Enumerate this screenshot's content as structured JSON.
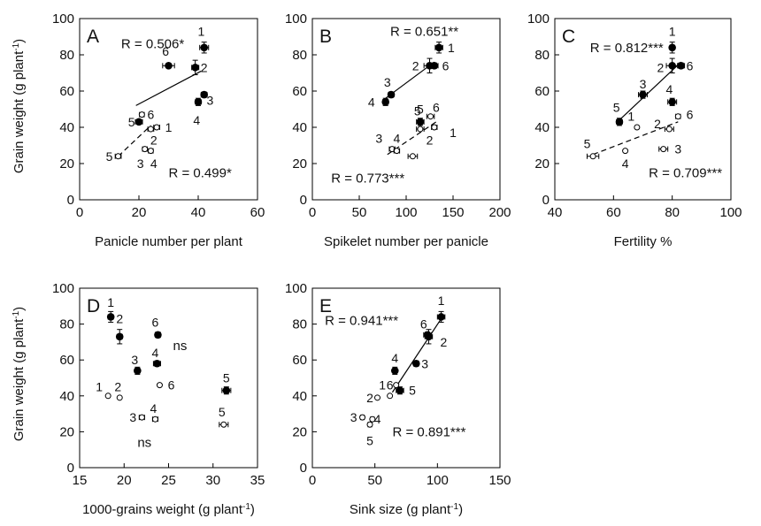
{
  "y_label_text": "Grain weight (g plant",
  "y_label_sup": "-1",
  "y_label_end": ")",
  "chart_data": [
    {
      "type": "scatter",
      "panel_label": "A",
      "xlabel": "Panicle number per plant",
      "xlim": [
        0,
        60
      ],
      "ylim": [
        0,
        100
      ],
      "xticks": [
        0,
        20,
        40,
        60
      ],
      "yticks": [
        0,
        20,
        40,
        60,
        80,
        100
      ],
      "annotations": [
        {
          "text": "R = 0.506*",
          "x": 14,
          "y": 86
        },
        {
          "text": "R = 0.499*",
          "x": 30,
          "y": 15
        }
      ],
      "series": [
        {
          "marker": "filled",
          "points": [
            {
              "label": "1",
              "x": 42,
              "y": 84,
              "xerr": 1.5,
              "yerr": 3,
              "lx": 41,
              "ly": 93
            },
            {
              "label": "2",
              "x": 39,
              "y": 73,
              "xerr": 1.2,
              "yerr": 4,
              "lx": 42,
              "ly": 73
            },
            {
              "label": "3",
              "x": 42,
              "y": 58,
              "xerr": 1,
              "yerr": 1.5,
              "lx": 44,
              "ly": 55
            },
            {
              "label": "4",
              "x": 40,
              "y": 54,
              "xerr": 1,
              "yerr": 2,
              "lx": 39.5,
              "ly": 44
            },
            {
              "label": "5",
              "x": 20,
              "y": 43,
              "xerr": 1.2,
              "yerr": 1,
              "lx": 17.5,
              "ly": 43
            },
            {
              "label": "6",
              "x": 30,
              "y": 74,
              "xerr": 2,
              "yerr": 1,
              "lx": 29,
              "ly": 82
            }
          ],
          "fit": {
            "x": [
              19,
              41
            ],
            "y": [
              52,
              71
            ],
            "dash": false
          }
        },
        {
          "marker": "open",
          "points": [
            {
              "label": "1",
              "x": 26,
              "y": 40,
              "xerr": 1,
              "yerr": 0,
              "lx": 30,
              "ly": 40
            },
            {
              "label": "2",
              "x": 24,
              "y": 39,
              "xerr": 1,
              "yerr": 0,
              "lx": 25,
              "ly": 33
            },
            {
              "label": "3",
              "x": 22,
              "y": 28,
              "xerr": 0.8,
              "yerr": 0,
              "lx": 20.5,
              "ly": 20
            },
            {
              "label": "4",
              "x": 24,
              "y": 27,
              "xerr": 0.8,
              "yerr": 0,
              "lx": 25,
              "ly": 20
            },
            {
              "label": "5",
              "x": 13,
              "y": 24,
              "xerr": 1,
              "yerr": 0,
              "lx": 10,
              "ly": 24
            },
            {
              "label": "6",
              "x": 21,
              "y": 47,
              "xerr": 0.8,
              "yerr": 0,
              "lx": 24,
              "ly": 47
            }
          ],
          "fit": {
            "x": [
              13,
              24
            ],
            "y": [
              24,
              41
            ],
            "dash": true
          }
        }
      ]
    },
    {
      "type": "scatter",
      "panel_label": "B",
      "xlabel": "Spikelet number per panicle",
      "xlim": [
        0,
        200
      ],
      "ylim": [
        0,
        100
      ],
      "xticks": [
        0,
        50,
        100,
        150,
        200
      ],
      "yticks": [
        0,
        20,
        40,
        60,
        80,
        100
      ],
      "annotations": [
        {
          "text": "R = 0.651**",
          "x": 83,
          "y": 93
        },
        {
          "text": "R = 0.773***",
          "x": 20,
          "y": 12
        }
      ],
      "series": [
        {
          "marker": "filled",
          "points": [
            {
              "label": "1",
              "x": 135,
              "y": 84,
              "xerr": 4,
              "yerr": 3,
              "lx": 148,
              "ly": 84
            },
            {
              "label": "2",
              "x": 125,
              "y": 74,
              "xerr": 6,
              "yerr": 4,
              "lx": 110,
              "ly": 74
            },
            {
              "label": "3",
              "x": 84,
              "y": 58,
              "xerr": 3,
              "yerr": 1.5,
              "lx": 80,
              "ly": 65
            },
            {
              "label": "4",
              "x": 78,
              "y": 54,
              "xerr": 3,
              "yerr": 2,
              "lx": 63,
              "ly": 54
            },
            {
              "label": "5",
              "x": 115,
              "y": 43,
              "xerr": 4,
              "yerr": 2,
              "lx": 115,
              "ly": 50
            },
            {
              "label": "6",
              "x": 130,
              "y": 74,
              "xerr": 4,
              "yerr": 1.5,
              "lx": 142,
              "ly": 74
            }
          ],
          "fit": {
            "x": [
              78,
              130
            ],
            "y": [
              56,
              76
            ],
            "dash": false
          }
        },
        {
          "marker": "open",
          "points": [
            {
              "label": "1",
              "x": 130,
              "y": 40,
              "xerr": 3,
              "yerr": 0,
              "lx": 150,
              "ly": 37
            },
            {
              "label": "2",
              "x": 115,
              "y": 39,
              "xerr": 4,
              "yerr": 0,
              "lx": 125,
              "ly": 33
            },
            {
              "label": "3",
              "x": 85,
              "y": 28,
              "xerr": 3,
              "yerr": 0,
              "lx": 71,
              "ly": 34
            },
            {
              "label": "4",
              "x": 90,
              "y": 27,
              "xerr": 3,
              "yerr": 0,
              "lx": 90,
              "ly": 34
            },
            {
              "label": "5",
              "x": 107,
              "y": 24,
              "xerr": 5,
              "yerr": 0,
              "lx": 112,
              "ly": 49
            },
            {
              "label": "6",
              "x": 126,
              "y": 46,
              "xerr": 4,
              "yerr": 0,
              "lx": 132,
              "ly": 51
            }
          ],
          "fit": {
            "x": [
              80,
              132
            ],
            "y": [
              25,
              43
            ],
            "dash": true
          }
        }
      ]
    },
    {
      "type": "scatter",
      "panel_label": "C",
      "xlabel": "Fertility %",
      "xlim": [
        40,
        100
      ],
      "ylim": [
        0,
        100
      ],
      "xticks": [
        40,
        60,
        80,
        100
      ],
      "yticks": [
        0,
        20,
        40,
        60,
        80,
        100
      ],
      "annotations": [
        {
          "text": "R = 0.812***",
          "x": 52,
          "y": 84
        },
        {
          "text": "R = 0.709***",
          "x": 72,
          "y": 15
        }
      ],
      "series": [
        {
          "marker": "filled",
          "points": [
            {
              "label": "1",
              "x": 80,
              "y": 84,
              "xerr": 0.8,
              "yerr": 3,
              "lx": 80,
              "ly": 93
            },
            {
              "label": "2",
              "x": 80,
              "y": 74,
              "xerr": 2,
              "yerr": 4,
              "lx": 76,
              "ly": 73
            },
            {
              "label": "3",
              "x": 70,
              "y": 58,
              "xerr": 1.5,
              "yerr": 2,
              "lx": 70,
              "ly": 64
            },
            {
              "label": "4",
              "x": 80,
              "y": 54,
              "xerr": 1.5,
              "yerr": 2,
              "lx": 79,
              "ly": 61
            },
            {
              "label": "5",
              "x": 62,
              "y": 43,
              "xerr": 1,
              "yerr": 2,
              "lx": 61,
              "ly": 51
            },
            {
              "label": "6",
              "x": 83,
              "y": 74,
              "xerr": 1.2,
              "yerr": 1.5,
              "lx": 86,
              "ly": 74
            }
          ],
          "fit": {
            "x": [
              62,
              83
            ],
            "y": [
              44,
              76
            ],
            "dash": false
          }
        },
        {
          "marker": "open",
          "points": [
            {
              "label": "1",
              "x": 68,
              "y": 40,
              "xerr": 0,
              "yerr": 0,
              "lx": 66,
              "ly": 46
            },
            {
              "label": "2",
              "x": 79,
              "y": 39,
              "xerr": 1.5,
              "yerr": 0,
              "lx": 75,
              "ly": 42
            },
            {
              "label": "3",
              "x": 77,
              "y": 28,
              "xerr": 1.5,
              "yerr": 0,
              "lx": 82,
              "ly": 28
            },
            {
              "label": "4",
              "x": 64,
              "y": 27,
              "xerr": 0,
              "yerr": 0,
              "lx": 64,
              "ly": 20
            },
            {
              "label": "5",
              "x": 53,
              "y": 24,
              "xerr": 2,
              "yerr": 0,
              "lx": 51,
              "ly": 31
            },
            {
              "label": "6",
              "x": 82,
              "y": 46,
              "xerr": 0.8,
              "yerr": 0,
              "lx": 86,
              "ly": 47
            }
          ],
          "fit": {
            "x": [
              53,
              82
            ],
            "y": [
              25,
              43
            ],
            "dash": true
          }
        }
      ]
    },
    {
      "type": "scatter",
      "panel_label": "D",
      "xlabel": "1000-grains weight (g plant",
      "xlabel_sup": "-1",
      "xlabel_end": ")",
      "xlim": [
        15,
        35
      ],
      "ylim": [
        0,
        100
      ],
      "xticks": [
        15,
        20,
        25,
        30,
        35
      ],
      "yticks": [
        0,
        20,
        40,
        60,
        80,
        100
      ],
      "annotations": [
        {
          "text": "ns",
          "x": 25.5,
          "y": 68
        },
        {
          "text": "ns",
          "x": 21.5,
          "y": 14
        }
      ],
      "series": [
        {
          "marker": "filled",
          "points": [
            {
              "label": "1",
              "x": 18.5,
              "y": 84,
              "xerr": 0.3,
              "yerr": 3,
              "lx": 18.5,
              "ly": 92
            },
            {
              "label": "2",
              "x": 19.5,
              "y": 73,
              "xerr": 0.3,
              "yerr": 4,
              "lx": 19.5,
              "ly": 83
            },
            {
              "label": "3",
              "x": 21.5,
              "y": 54,
              "xerr": 0.3,
              "yerr": 2,
              "lx": 21.2,
              "ly": 60
            },
            {
              "label": "4",
              "x": 23.7,
              "y": 58,
              "xerr": 0.4,
              "yerr": 1.5,
              "lx": 23.5,
              "ly": 64
            },
            {
              "label": "5",
              "x": 31.5,
              "y": 43,
              "xerr": 0.5,
              "yerr": 2,
              "lx": 31.5,
              "ly": 50
            },
            {
              "label": "6",
              "x": 23.8,
              "y": 74,
              "xerr": 0.3,
              "yerr": 1.5,
              "lx": 23.5,
              "ly": 81
            }
          ]
        },
        {
          "marker": "open",
          "points": [
            {
              "label": "1",
              "x": 18.2,
              "y": 40,
              "xerr": 0,
              "yerr": 0,
              "lx": 17.2,
              "ly": 45
            },
            {
              "label": "2",
              "x": 19.5,
              "y": 39,
              "xerr": 0,
              "yerr": 0,
              "lx": 19.3,
              "ly": 45
            },
            {
              "label": "3",
              "x": 22,
              "y": 28,
              "xerr": 0.3,
              "yerr": 0,
              "lx": 21,
              "ly": 28
            },
            {
              "label": "4",
              "x": 23.5,
              "y": 27,
              "xerr": 0.3,
              "yerr": 0,
              "lx": 23.3,
              "ly": 33
            },
            {
              "label": "5",
              "x": 31.2,
              "y": 24,
              "xerr": 0.5,
              "yerr": 0,
              "lx": 31,
              "ly": 31
            },
            {
              "label": "6",
              "x": 24,
              "y": 46,
              "xerr": 0,
              "yerr": 0,
              "lx": 25.3,
              "ly": 46
            }
          ]
        }
      ]
    },
    {
      "type": "scatter",
      "panel_label": "E",
      "xlabel": "Sink size (g plant",
      "xlabel_sup": "-1",
      "xlabel_end": ")",
      "xlim": [
        0,
        150
      ],
      "ylim": [
        0,
        100
      ],
      "xticks": [
        0,
        50,
        100,
        150
      ],
      "yticks": [
        0,
        20,
        40,
        60,
        80,
        100
      ],
      "annotations": [
        {
          "text": "R = 0.941***",
          "x": 10,
          "y": 82
        },
        {
          "text": "R = 0.891***",
          "x": 64,
          "y": 20
        }
      ],
      "series": [
        {
          "marker": "filled",
          "points": [
            {
              "label": "1",
              "x": 103,
              "y": 84,
              "xerr": 3,
              "yerr": 3,
              "lx": 103,
              "ly": 93
            },
            {
              "label": "2",
              "x": 93,
              "y": 73,
              "xerr": 3,
              "yerr": 4,
              "lx": 105,
              "ly": 70
            },
            {
              "label": "3",
              "x": 83,
              "y": 58,
              "xerr": 2,
              "yerr": 1.5,
              "lx": 90,
              "ly": 58
            },
            {
              "label": "4",
              "x": 66,
              "y": 54,
              "xerr": 2,
              "yerr": 2,
              "lx": 66,
              "ly": 61
            },
            {
              "label": "5",
              "x": 70,
              "y": 43,
              "xerr": 3,
              "yerr": 2,
              "lx": 80,
              "ly": 43
            },
            {
              "label": "6",
              "x": 92,
              "y": 74,
              "xerr": 3,
              "yerr": 1.5,
              "lx": 89,
              "ly": 80
            }
          ],
          "fit": {
            "x": [
              64,
              104
            ],
            "y": [
              42,
              84
            ],
            "dash": false
          }
        },
        {
          "marker": "open",
          "points": [
            {
              "label": "1",
              "x": 62,
              "y": 40,
              "xerr": 0,
              "yerr": 0,
              "lx": 56,
              "ly": 46
            },
            {
              "label": "2",
              "x": 52,
              "y": 39,
              "xerr": 0,
              "yerr": 0,
              "lx": 46,
              "ly": 39
            },
            {
              "label": "3",
              "x": 40,
              "y": 28,
              "xerr": 1.5,
              "yerr": 0,
              "lx": 33,
              "ly": 28
            },
            {
              "label": "4",
              "x": 48,
              "y": 27,
              "xerr": 1.5,
              "yerr": 0,
              "lx": 52,
              "ly": 27
            },
            {
              "label": "5",
              "x": 46,
              "y": 24,
              "xerr": 1.5,
              "yerr": 0,
              "lx": 46,
              "ly": 15
            },
            {
              "label": "6",
              "x": 67,
              "y": 46,
              "xerr": 0,
              "yerr": 0,
              "lx": 62,
              "ly": 46
            }
          ]
        }
      ]
    }
  ]
}
